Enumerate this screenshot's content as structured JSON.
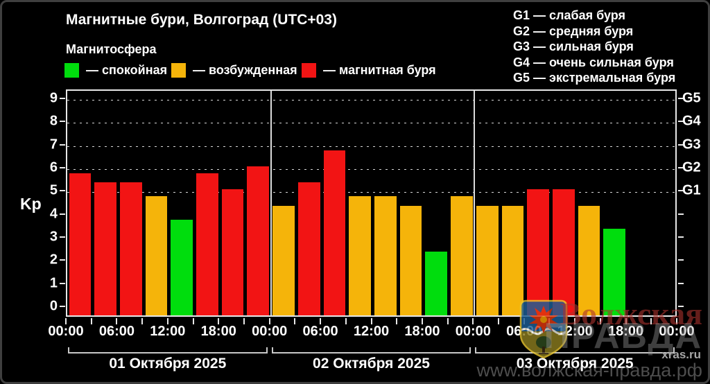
{
  "header": {
    "title": "Магнитные бури, Волгоград (UTC+03)",
    "subtitle": "Магнитосфера"
  },
  "legend": {
    "items": [
      {
        "label": "— спокойная",
        "color": "#00dd0d",
        "key": "quiet"
      },
      {
        "label": "— возбужденная",
        "color": "#f5b40a",
        "key": "unsettled"
      },
      {
        "label": "— магнитная буря",
        "color": "#f21414",
        "key": "storm"
      }
    ]
  },
  "storm_scale_legend": {
    "items": [
      "G1 — слабая буря",
      "G2 — средняя буря",
      "G3 — сильная буря",
      "G4 — очень сильная буря",
      "G5 — экстремальная буря"
    ]
  },
  "chart_data": {
    "type": "bar",
    "title": "Магнитные бури, Волгоград (UTC+03)",
    "ylabel": "Kp",
    "ylim": [
      0,
      9
    ],
    "y_ticks": [
      0,
      1,
      2,
      3,
      4,
      5,
      6,
      7,
      8,
      9
    ],
    "grid": "dashed horizontal lines at Kp 5-9 only",
    "grid_levels": [
      5,
      6,
      7,
      8,
      9
    ],
    "right_axis_labels": [
      {
        "label": "G1",
        "kp": 5
      },
      {
        "label": "G2",
        "kp": 6
      },
      {
        "label": "G3",
        "kp": 7
      },
      {
        "label": "G4",
        "kp": 8
      },
      {
        "label": "G5",
        "kp": 9
      }
    ],
    "x_time_labels": [
      "00:00",
      "06:00",
      "12:00",
      "18:00",
      "00:00",
      "06:00",
      "12:00",
      "18:00",
      "00:00",
      "06:00",
      "12:00",
      "18:00",
      "00:00"
    ],
    "hours_per_bar": 3,
    "slots_per_day": 8,
    "color_map": {
      "quiet": "#00dd0d",
      "unsettled": "#f5b40a",
      "storm": "#f21414"
    },
    "days": [
      {
        "label": "01 Октября 2025",
        "kp": [
          5.7,
          5.3,
          5.3,
          4.7,
          3.7,
          5.7,
          5.0,
          6.0
        ],
        "status": [
          "storm",
          "storm",
          "storm",
          "unsettled",
          "quiet",
          "storm",
          "storm",
          "storm"
        ]
      },
      {
        "label": "02 Октября 2025",
        "kp": [
          4.3,
          5.3,
          6.7,
          4.7,
          4.7,
          4.3,
          2.3,
          4.7
        ],
        "status": [
          "unsettled",
          "storm",
          "storm",
          "unsettled",
          "unsettled",
          "unsettled",
          "quiet",
          "unsettled"
        ]
      },
      {
        "label": "03 Октября 2025",
        "kp": [
          4.3,
          4.3,
          5.0,
          5.0,
          4.3,
          3.3
        ],
        "status": [
          "unsettled",
          "unsettled",
          "storm",
          "storm",
          "unsettled",
          "quiet"
        ]
      }
    ]
  },
  "watermark": {
    "brand_line1": "Волжская",
    "brand_line2": "ПРАВДА",
    "site": "xras.ru",
    "url": "www.волжская-правда.рф"
  }
}
